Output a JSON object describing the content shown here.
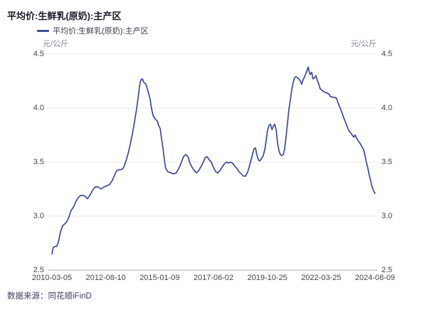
{
  "page": {
    "title": "平均价:生鲜乳(原奶):主产区",
    "source_note": "数据来源：同花顺iFinD"
  },
  "legend": {
    "label": "平均价:生鲜乳(原奶):主产区",
    "marker_color": "#3C4B9E"
  },
  "colors": {
    "line": "#3C4B9E",
    "grid_line": "#e9e9f1",
    "axis_line": "#a9abb8",
    "title_text": "#1a1a26",
    "tick_text": "#45454f",
    "axis_name_text": "#82828f",
    "source_text": "#3e3e5a"
  },
  "chart_data": {
    "type": "line",
    "title": "平均价:生鲜乳(原奶):主产区",
    "y_axis_name_left": "元/公斤",
    "y_axis_name_right": "元/公斤",
    "ylim": [
      2.5,
      4.5
    ],
    "ytick_labels": [
      "4.5",
      "4.0",
      "3.5",
      "3.0",
      "2.5"
    ],
    "x_tick_labels": [
      "2010-03-05",
      "2012-08-10",
      "2015-01-09",
      "2017-06-02",
      "2019-10-25",
      "2022-03-25",
      "2024-08-09"
    ],
    "x_encoding": "fraction 0-1 of time span 2010-03-05 to 2024-08-09",
    "grid": "horizontal gridlines only, bottom axis line darker",
    "legend_position": "top-left",
    "line_color": "#3C4B9E",
    "series": [
      {
        "name": "平均价:生鲜乳(原奶):主产区",
        "unit": "元/公斤",
        "points": [
          [
            0.0,
            2.65
          ],
          [
            0.004,
            2.71
          ],
          [
            0.011,
            2.72
          ],
          [
            0.015,
            2.72
          ],
          [
            0.02,
            2.76
          ],
          [
            0.026,
            2.85
          ],
          [
            0.033,
            2.91
          ],
          [
            0.037,
            2.92
          ],
          [
            0.044,
            2.94
          ],
          [
            0.051,
            2.98
          ],
          [
            0.059,
            3.05
          ],
          [
            0.068,
            3.09
          ],
          [
            0.075,
            3.14
          ],
          [
            0.081,
            3.17
          ],
          [
            0.088,
            3.19
          ],
          [
            0.097,
            3.19
          ],
          [
            0.104,
            3.18
          ],
          [
            0.11,
            3.16
          ],
          [
            0.117,
            3.19
          ],
          [
            0.126,
            3.24
          ],
          [
            0.134,
            3.27
          ],
          [
            0.143,
            3.27
          ],
          [
            0.152,
            3.25
          ],
          [
            0.161,
            3.27
          ],
          [
            0.17,
            3.28
          ],
          [
            0.178,
            3.29
          ],
          [
            0.187,
            3.33
          ],
          [
            0.194,
            3.38
          ],
          [
            0.2,
            3.42
          ],
          [
            0.209,
            3.43
          ],
          [
            0.216,
            3.43
          ],
          [
            0.222,
            3.45
          ],
          [
            0.229,
            3.51
          ],
          [
            0.236,
            3.58
          ],
          [
            0.242,
            3.66
          ],
          [
            0.249,
            3.76
          ],
          [
            0.256,
            3.88
          ],
          [
            0.262,
            3.99
          ],
          [
            0.267,
            4.1
          ],
          [
            0.271,
            4.2
          ],
          [
            0.275,
            4.26
          ],
          [
            0.28,
            4.27
          ],
          [
            0.284,
            4.24
          ],
          [
            0.291,
            4.22
          ],
          [
            0.297,
            4.16
          ],
          [
            0.304,
            4.08
          ],
          [
            0.308,
            4.0
          ],
          [
            0.313,
            3.93
          ],
          [
            0.319,
            3.9
          ],
          [
            0.326,
            3.88
          ],
          [
            0.33,
            3.84
          ],
          [
            0.335,
            3.81
          ],
          [
            0.339,
            3.72
          ],
          [
            0.344,
            3.62
          ],
          [
            0.348,
            3.52
          ],
          [
            0.352,
            3.44
          ],
          [
            0.359,
            3.41
          ],
          [
            0.368,
            3.4
          ],
          [
            0.377,
            3.39
          ],
          [
            0.385,
            3.4
          ],
          [
            0.394,
            3.45
          ],
          [
            0.401,
            3.5
          ],
          [
            0.407,
            3.55
          ],
          [
            0.414,
            3.57
          ],
          [
            0.421,
            3.55
          ],
          [
            0.427,
            3.49
          ],
          [
            0.434,
            3.45
          ],
          [
            0.441,
            3.42
          ],
          [
            0.447,
            3.4
          ],
          [
            0.454,
            3.42
          ],
          [
            0.46,
            3.45
          ],
          [
            0.467,
            3.49
          ],
          [
            0.474,
            3.54
          ],
          [
            0.48,
            3.55
          ],
          [
            0.487,
            3.52
          ],
          [
            0.493,
            3.5
          ],
          [
            0.5,
            3.45
          ],
          [
            0.507,
            3.41
          ],
          [
            0.513,
            3.4
          ],
          [
            0.52,
            3.42
          ],
          [
            0.526,
            3.45
          ],
          [
            0.533,
            3.48
          ],
          [
            0.54,
            3.5
          ],
          [
            0.546,
            3.49
          ],
          [
            0.553,
            3.5
          ],
          [
            0.559,
            3.49
          ],
          [
            0.566,
            3.46
          ],
          [
            0.573,
            3.44
          ],
          [
            0.579,
            3.41
          ],
          [
            0.586,
            3.39
          ],
          [
            0.593,
            3.37
          ],
          [
            0.599,
            3.37
          ],
          [
            0.606,
            3.41
          ],
          [
            0.612,
            3.47
          ],
          [
            0.619,
            3.55
          ],
          [
            0.625,
            3.62
          ],
          [
            0.63,
            3.63
          ],
          [
            0.634,
            3.57
          ],
          [
            0.639,
            3.52
          ],
          [
            0.643,
            3.51
          ],
          [
            0.648,
            3.53
          ],
          [
            0.654,
            3.56
          ],
          [
            0.659,
            3.62
          ],
          [
            0.663,
            3.7
          ],
          [
            0.667,
            3.79
          ],
          [
            0.672,
            3.84
          ],
          [
            0.676,
            3.85
          ],
          [
            0.681,
            3.8
          ],
          [
            0.685,
            3.83
          ],
          [
            0.689,
            3.85
          ],
          [
            0.694,
            3.8
          ],
          [
            0.698,
            3.68
          ],
          [
            0.703,
            3.6
          ],
          [
            0.707,
            3.57
          ],
          [
            0.711,
            3.56
          ],
          [
            0.716,
            3.57
          ],
          [
            0.72,
            3.62
          ],
          [
            0.725,
            3.74
          ],
          [
            0.729,
            3.86
          ],
          [
            0.733,
            3.98
          ],
          [
            0.738,
            4.08
          ],
          [
            0.742,
            4.17
          ],
          [
            0.747,
            4.24
          ],
          [
            0.751,
            4.28
          ],
          [
            0.755,
            4.29
          ],
          [
            0.76,
            4.28
          ],
          [
            0.764,
            4.27
          ],
          [
            0.769,
            4.25
          ],
          [
            0.773,
            4.22
          ],
          [
            0.777,
            4.26
          ],
          [
            0.782,
            4.29
          ],
          [
            0.786,
            4.32
          ],
          [
            0.791,
            4.36
          ],
          [
            0.793,
            4.38
          ],
          [
            0.795,
            4.35
          ],
          [
            0.799,
            4.31
          ],
          [
            0.804,
            4.33
          ],
          [
            0.808,
            4.27
          ],
          [
            0.813,
            4.28
          ],
          [
            0.817,
            4.3
          ],
          [
            0.821,
            4.26
          ],
          [
            0.826,
            4.22
          ],
          [
            0.83,
            4.18
          ],
          [
            0.837,
            4.16
          ],
          [
            0.843,
            4.15
          ],
          [
            0.85,
            4.14
          ],
          [
            0.857,
            4.13
          ],
          [
            0.861,
            4.11
          ],
          [
            0.868,
            4.1
          ],
          [
            0.874,
            4.1
          ],
          [
            0.881,
            4.09
          ],
          [
            0.885,
            4.05
          ],
          [
            0.892,
            4.0
          ],
          [
            0.896,
            3.97
          ],
          [
            0.903,
            3.91
          ],
          [
            0.91,
            3.86
          ],
          [
            0.916,
            3.81
          ],
          [
            0.921,
            3.78
          ],
          [
            0.925,
            3.77
          ],
          [
            0.929,
            3.75
          ],
          [
            0.934,
            3.73
          ],
          [
            0.938,
            3.75
          ],
          [
            0.943,
            3.72
          ],
          [
            0.947,
            3.7
          ],
          [
            0.952,
            3.68
          ],
          [
            0.956,
            3.66
          ],
          [
            0.96,
            3.64
          ],
          [
            0.965,
            3.61
          ],
          [
            0.969,
            3.56
          ],
          [
            0.973,
            3.5
          ],
          [
            0.978,
            3.44
          ],
          [
            0.982,
            3.38
          ],
          [
            0.987,
            3.32
          ],
          [
            0.991,
            3.27
          ],
          [
            0.996,
            3.23
          ],
          [
            1.0,
            3.21
          ]
        ]
      }
    ]
  }
}
